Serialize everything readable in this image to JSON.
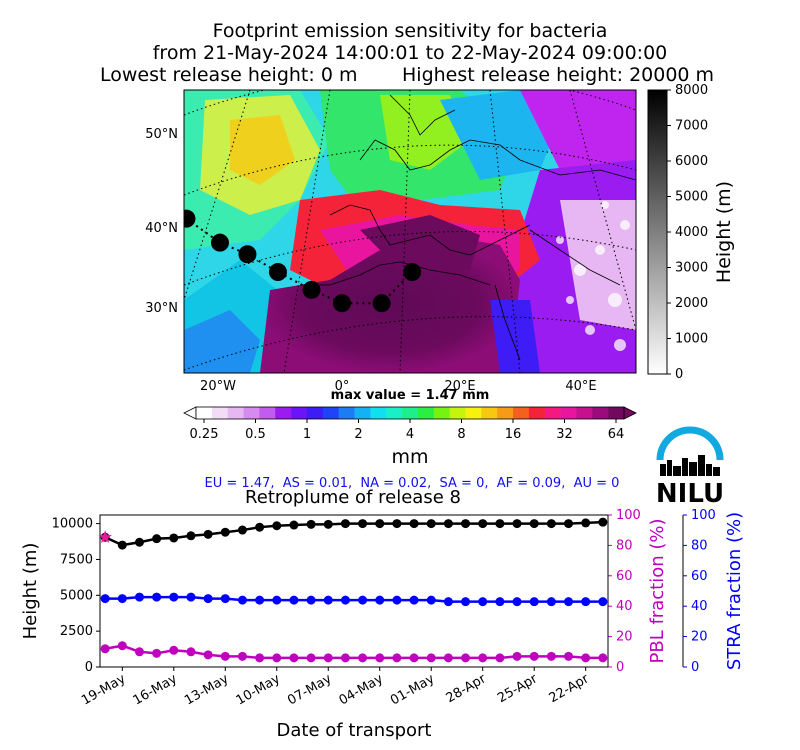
{
  "title": {
    "line1": "Footprint emission sensitivity for bacteria",
    "line2": "from 21-May-2024 14:00:01 to 22-May-2024 09:00:00",
    "lowest": "Lowest release height: 0 m",
    "highest": "Highest release height: 20000 m"
  },
  "map": {
    "lat_labels": [
      "50°N",
      "40°N",
      "30°N"
    ],
    "lon_labels": [
      "20°W",
      "0°",
      "20°E",
      "40°E"
    ],
    "max_value_text": "max value = 1.47 mm",
    "release_points": [
      {
        "lon": -25.5,
        "lat": 41.5
      },
      {
        "lon": -20.0,
        "lat": 38.8
      },
      {
        "lon": -15.5,
        "lat": 37.5
      },
      {
        "lon": -10.5,
        "lat": 35.5
      },
      {
        "lon": -5.0,
        "lat": 33.5
      },
      {
        "lon": 0.0,
        "lat": 32.0
      },
      {
        "lon": 6.5,
        "lat": 32.0
      },
      {
        "lon": 11.5,
        "lat": 35.5
      }
    ]
  },
  "height_colorbar": {
    "label": "Height (m)",
    "ticks": [
      "8000",
      "7000",
      "6000",
      "5000",
      "4000",
      "3000",
      "2000",
      "1000",
      "0"
    ]
  },
  "footprint_colorbar": {
    "ticks": [
      "0.25",
      "0.5",
      "1",
      "2",
      "4",
      "8",
      "16",
      "32",
      "64"
    ],
    "unit": "mm",
    "colors": [
      "#ffffff",
      "#f3ddf6",
      "#e6b7f2",
      "#d68bf0",
      "#c25cf0",
      "#9a1cf0",
      "#6a14f7",
      "#3d1cf5",
      "#1f44f7",
      "#1c7cf5",
      "#13b2f2",
      "#0fe0f0",
      "#19f0c8",
      "#1df08a",
      "#2bef3f",
      "#77f312",
      "#c6f50d",
      "#f6f10d",
      "#f7c810",
      "#f79a16",
      "#f6601f",
      "#f5233a",
      "#f51880",
      "#e9159f",
      "#c7108d",
      "#9c0b7a",
      "#74085f"
    ]
  },
  "regions": "EU = 1.47,  AS = 0.01,  NA = 0.02,  SA = 0,  AF = 0.09,  AU = 0",
  "logo_text": "NILU",
  "chart_data": {
    "type": "line",
    "title": "Retroplume of release 8",
    "xlabel": "Date of transport",
    "x_tick_labels": [
      "19-May",
      "16-May",
      "13-May",
      "10-May",
      "07-May",
      "04-May",
      "01-May",
      "28-Apr",
      "25-Apr",
      "22-Apr"
    ],
    "x_days_back": [
      0,
      1,
      2,
      3,
      4,
      5,
      6,
      7,
      8,
      9,
      10,
      11,
      12,
      13,
      14,
      15,
      16,
      17,
      18,
      19,
      20,
      21,
      22,
      23,
      24,
      25,
      26,
      27,
      28,
      29
    ],
    "series": [
      {
        "name": "Height (m)",
        "axis": "left",
        "color": "#000000",
        "values": [
          9050,
          8500,
          8700,
          8950,
          9000,
          9150,
          9250,
          9400,
          9550,
          9750,
          9850,
          9900,
          9950,
          9950,
          10000,
          10000,
          10000,
          10000,
          10000,
          10000,
          10000,
          10000,
          10000,
          10000,
          10000,
          10000,
          10000,
          10000,
          10050,
          10100
        ]
      },
      {
        "name": "PBL fraction (%)",
        "axis": "right",
        "color": "#bf00bf",
        "values": [
          12,
          14,
          10,
          9,
          11,
          10,
          8,
          7,
          7,
          6,
          6,
          6,
          6,
          6,
          6,
          6,
          6,
          6,
          6,
          6,
          6,
          6,
          6,
          6,
          7,
          7,
          7,
          7,
          6,
          6
        ]
      },
      {
        "name": "STRA fraction (%)",
        "axis": "right2",
        "color": "#0000ff",
        "values": [
          45,
          45,
          46,
          46,
          46,
          46,
          45,
          45,
          44,
          44,
          44,
          44,
          44,
          44,
          44,
          44,
          44,
          44,
          44,
          44,
          43,
          43,
          43,
          43,
          43,
          43,
          43,
          43,
          43,
          43
        ]
      }
    ],
    "ylabel_left": "Height (m)",
    "ylim_left": [
      0,
      10600
    ],
    "yticks_left": [
      "0",
      "2500",
      "5000",
      "7500",
      "10000"
    ],
    "ylabel_right": "PBL fraction (%)",
    "ylabel_right2": "STRA fraction (%)",
    "ylim_right": [
      0,
      100
    ],
    "yticks_right": [
      "0",
      "20",
      "40",
      "60",
      "80",
      "100"
    ]
  }
}
